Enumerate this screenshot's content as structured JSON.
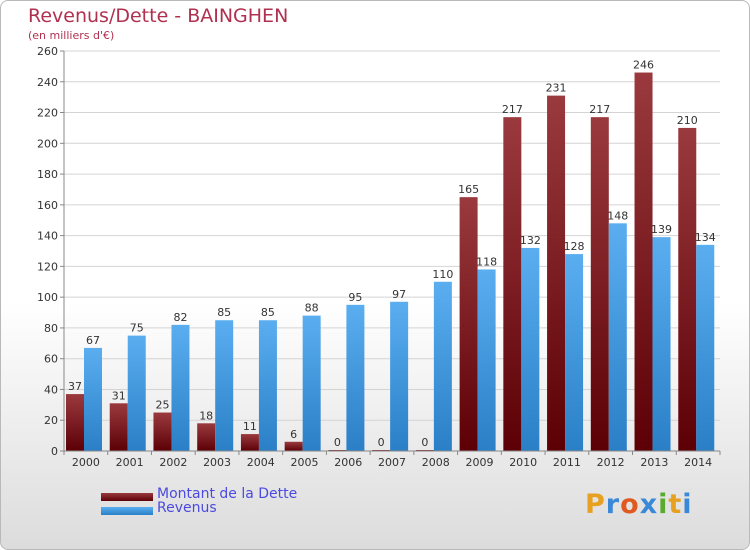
{
  "title": "Revenus/Dette - BAINGHEN",
  "subtitle": "(en milliers d'€)",
  "logo_text": "Proxiti",
  "logo_colors": [
    "#e8a020",
    "#3a88d8",
    "#e05a20",
    "#3a88d8",
    "#5aaa30",
    "#e8a020",
    "#3a88d8"
  ],
  "colors": {
    "dette": "#7a1a1e",
    "revenus": "#3d95dc"
  },
  "chart_data": {
    "type": "bar",
    "title": "Revenus/Dette - BAINGHEN",
    "subtitle": "(en milliers d'€)",
    "xlabel": "",
    "ylabel": "",
    "ylim": [
      0,
      260
    ],
    "yticks": [
      0,
      20,
      40,
      60,
      80,
      100,
      120,
      140,
      160,
      180,
      200,
      220,
      240,
      260
    ],
    "grid": true,
    "legend": "bottom-left",
    "categories": [
      "2000",
      "2001",
      "2002",
      "2003",
      "2004",
      "2005",
      "2006",
      "2007",
      "2008",
      "2009",
      "2010",
      "2011",
      "2012",
      "2013",
      "2014"
    ],
    "series": [
      {
        "name": "Montant de la Dette",
        "values": [
          37,
          31,
          25,
          18,
          11,
          6,
          0,
          0,
          0,
          165,
          217,
          231,
          217,
          246,
          210
        ]
      },
      {
        "name": "Revenus",
        "values": [
          67,
          75,
          82,
          85,
          85,
          88,
          95,
          97,
          110,
          118,
          132,
          128,
          148,
          139,
          134
        ]
      }
    ]
  }
}
